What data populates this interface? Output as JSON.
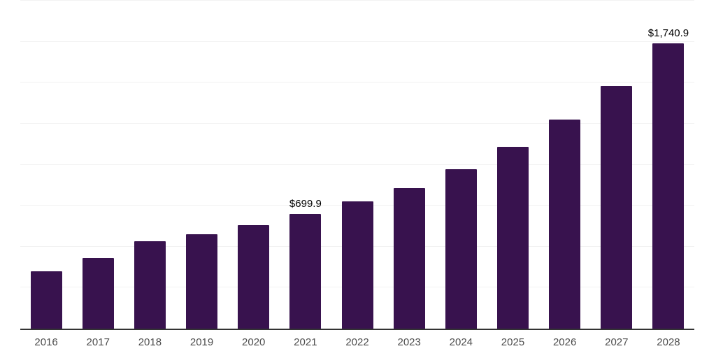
{
  "chart_data": {
    "type": "bar",
    "title": "",
    "xlabel": "",
    "ylabel": "",
    "categories": [
      "2016",
      "2017",
      "2018",
      "2019",
      "2020",
      "2021",
      "2022",
      "2023",
      "2024",
      "2025",
      "2026",
      "2027",
      "2028"
    ],
    "values": [
      349,
      432,
      534,
      576,
      633,
      699.9,
      776,
      859,
      972,
      1108,
      1274,
      1479,
      1740.9
    ],
    "annotations": [
      {
        "category": "2021",
        "text": "$699.9"
      },
      {
        "category": "2028",
        "text": "$1,740.9"
      }
    ],
    "ylim": [
      0,
      2000
    ],
    "gridline_interval": 250,
    "grid": "horizontal, unlabeled",
    "legend": "none",
    "y_axis_ticks": "none",
    "colors": {
      "bar": "#38124E",
      "axis_line": "#333333",
      "gridline": "#f2f2f2",
      "tick_label": "#4d4d4d",
      "value_label": "#000000",
      "background": "#ffffff"
    }
  }
}
